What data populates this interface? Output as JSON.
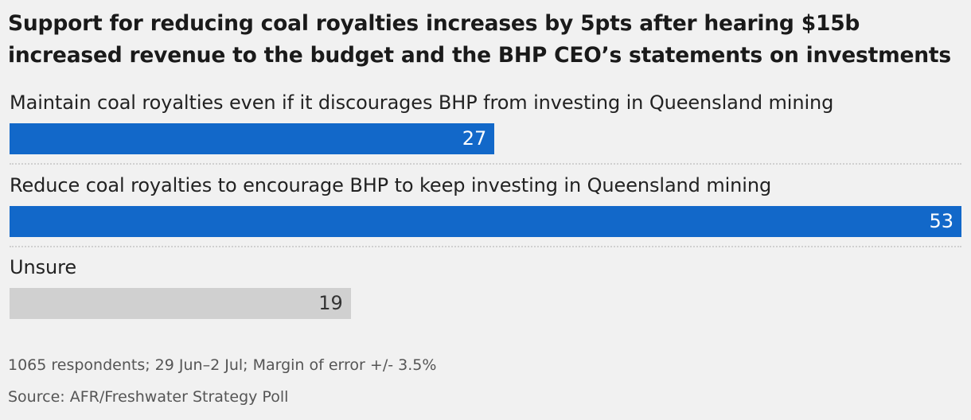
{
  "chart_data": {
    "type": "bar",
    "orientation": "horizontal",
    "title": "Support for reducing coal royalties increases by 5pts after hearing $15b increased revenue to the budget and the BHP CEO’s statements on investments",
    "categories": [
      "Maintain coal royalties even if it discourages BHP from investing in Queensland mining",
      "Reduce coal royalties to encourage BHP to keep investing in Queensland mining",
      "Unsure"
    ],
    "values": [
      27,
      53,
      19
    ],
    "colors": [
      "#1268c9",
      "#1268c9",
      "#d0d0d0"
    ],
    "value_label_colors": [
      "#ffffff",
      "#ffffff",
      "#333333"
    ],
    "xlim": [
      0,
      53
    ],
    "grid": false,
    "legend": "none",
    "notes": "1065 respondents; 29 Jun–2 Jul; Margin of error +/- 3.5%",
    "source": "Source: AFR/Freshwater Strategy Poll"
  }
}
